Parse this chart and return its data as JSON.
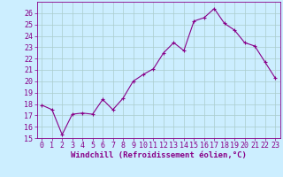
{
  "x": [
    0,
    1,
    2,
    3,
    4,
    5,
    6,
    7,
    8,
    9,
    10,
    11,
    12,
    13,
    14,
    15,
    16,
    17,
    18,
    19,
    20,
    21,
    22,
    23
  ],
  "y": [
    17.9,
    17.5,
    15.3,
    17.1,
    17.2,
    17.1,
    18.4,
    17.5,
    18.5,
    20.0,
    20.6,
    21.1,
    22.5,
    23.4,
    22.7,
    25.3,
    25.6,
    26.4,
    25.1,
    24.5,
    23.4,
    23.1,
    21.7,
    20.3
  ],
  "line_color": "#880088",
  "marker": "+",
  "bg_color": "#cceeff",
  "grid_color": "#aacccc",
  "xlabel": "Windchill (Refroidissement éolien,°C)",
  "ylim": [
    15,
    27
  ],
  "xlim": [
    -0.5,
    23.5
  ],
  "yticks": [
    15,
    16,
    17,
    18,
    19,
    20,
    21,
    22,
    23,
    24,
    25,
    26
  ],
  "xticks": [
    0,
    1,
    2,
    3,
    4,
    5,
    6,
    7,
    8,
    9,
    10,
    11,
    12,
    13,
    14,
    15,
    16,
    17,
    18,
    19,
    20,
    21,
    22,
    23
  ],
  "tick_color": "#880088",
  "label_fontsize": 6.5,
  "tick_fontsize": 6.0,
  "line_width": 0.8,
  "marker_size": 3,
  "marker_edge_width": 0.8
}
